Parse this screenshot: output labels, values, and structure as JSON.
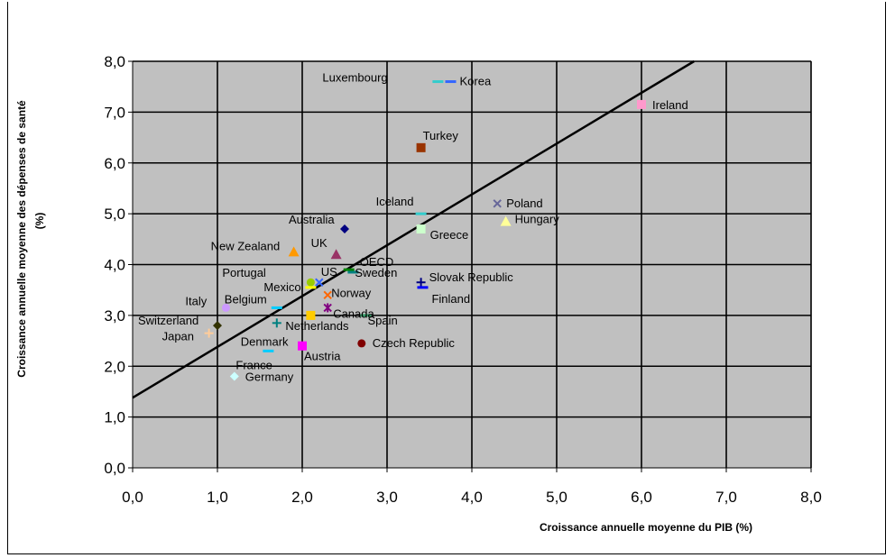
{
  "chart_data": {
    "type": "scatter",
    "title": "",
    "xlabel": "Croissance annuelle moyenne du PIB (%)",
    "ylabel": "Croissance annuelle moyenne des dépenses de santé (%)",
    "xlim": [
      0,
      8
    ],
    "ylim": [
      0,
      8
    ],
    "xticks": [
      "0,0",
      "1,0",
      "2,0",
      "3,0",
      "4,0",
      "5,0",
      "6,0",
      "7,0",
      "8,0"
    ],
    "yticks": [
      "0,0",
      "1,0",
      "2,0",
      "3,0",
      "4,0",
      "5,0",
      "6,0",
      "7,0",
      "8,0"
    ],
    "grid": true,
    "background": "#c0c0c0",
    "trendline": {
      "intercept": 1.38,
      "slope": 1.0
    },
    "points": [
      {
        "name": "Luxembourg",
        "x": 3.6,
        "y": 7.6,
        "color": "#33cccc",
        "marker": "dash"
      },
      {
        "name": "Korea",
        "x": 3.75,
        "y": 7.6,
        "color": "#3366ff",
        "marker": "dash"
      },
      {
        "name": "Ireland",
        "x": 6.0,
        "y": 7.15,
        "color": "#ff99cc",
        "marker": "square"
      },
      {
        "name": "Turkey",
        "x": 3.4,
        "y": 6.3,
        "color": "#993300",
        "marker": "square"
      },
      {
        "name": "Iceland",
        "x": 3.4,
        "y": 5.0,
        "color": "#33cccc",
        "marker": "dash"
      },
      {
        "name": "Poland",
        "x": 4.3,
        "y": 5.2,
        "color": "#666699",
        "marker": "x"
      },
      {
        "name": "Hungary",
        "x": 4.4,
        "y": 4.85,
        "color": "#ffff99",
        "marker": "triangle"
      },
      {
        "name": "Greece",
        "x": 3.4,
        "y": 4.7,
        "color": "#ccffcc",
        "marker": "square"
      },
      {
        "name": "Australia",
        "x": 2.5,
        "y": 4.7,
        "color": "#000080",
        "marker": "diamond"
      },
      {
        "name": "New Zealand",
        "x": 1.9,
        "y": 4.25,
        "color": "#ff9900",
        "marker": "triangle"
      },
      {
        "name": "UK",
        "x": 2.4,
        "y": 4.2,
        "color": "#993366",
        "marker": "triangle"
      },
      {
        "name": "OECD",
        "x": 2.55,
        "y": 3.9,
        "color": "#008000",
        "marker": "dash"
      },
      {
        "name": "Sweden",
        "x": 2.6,
        "y": 3.85,
        "color": "#008080",
        "marker": "dash"
      },
      {
        "name": "Slovak Republic",
        "x": 3.4,
        "y": 3.65,
        "color": "#000080",
        "marker": "plus"
      },
      {
        "name": "Finland",
        "x": 3.42,
        "y": 3.55,
        "color": "#0000ff",
        "marker": "dash"
      },
      {
        "name": "Portugal",
        "x": 2.1,
        "y": 3.65,
        "color": "#99cc00",
        "marker": "circle"
      },
      {
        "name": "US",
        "x": 2.2,
        "y": 3.65,
        "color": "#3366ff",
        "marker": "x"
      },
      {
        "name": "Mexico",
        "x": 2.1,
        "y": 3.55,
        "color": "#ffff00",
        "marker": "dash"
      },
      {
        "name": "Norway",
        "x": 2.3,
        "y": 3.4,
        "color": "#ff6600",
        "marker": "x"
      },
      {
        "name": "Canada",
        "x": 2.3,
        "y": 3.15,
        "color": "#800080",
        "marker": "star"
      },
      {
        "name": "Italy",
        "x": 1.1,
        "y": 3.15,
        "color": "#cc99ff",
        "marker": "circle"
      },
      {
        "name": "Belgium",
        "x": 1.7,
        "y": 3.15,
        "color": "#00ccff",
        "marker": "dash"
      },
      {
        "name": "Netherlands",
        "x": 2.1,
        "y": 3.0,
        "color": "#ffcc00",
        "marker": "square"
      },
      {
        "name": "Spain",
        "x": 2.75,
        "y": 3.0,
        "color": "#339966",
        "marker": "dash"
      },
      {
        "name": "Switzerland",
        "x": 1.0,
        "y": 2.8,
        "color": "#333300",
        "marker": "diamond"
      },
      {
        "name": "Japan",
        "x": 0.9,
        "y": 2.65,
        "color": "#ffcc99",
        "marker": "plus"
      },
      {
        "name": "Denmark",
        "x": 1.7,
        "y": 2.85,
        "color": "#008080",
        "marker": "plus"
      },
      {
        "name": "Austria",
        "x": 2.0,
        "y": 2.4,
        "color": "#ff00ff",
        "marker": "square"
      },
      {
        "name": "Czech Republic",
        "x": 2.7,
        "y": 2.45,
        "color": "#800000",
        "marker": "circle"
      },
      {
        "name": "France",
        "x": 1.6,
        "y": 2.3,
        "color": "#00ccff",
        "marker": "dash"
      },
      {
        "name": "Germany",
        "x": 1.2,
        "y": 1.8,
        "color": "#ccffff",
        "marker": "diamond"
      }
    ]
  }
}
